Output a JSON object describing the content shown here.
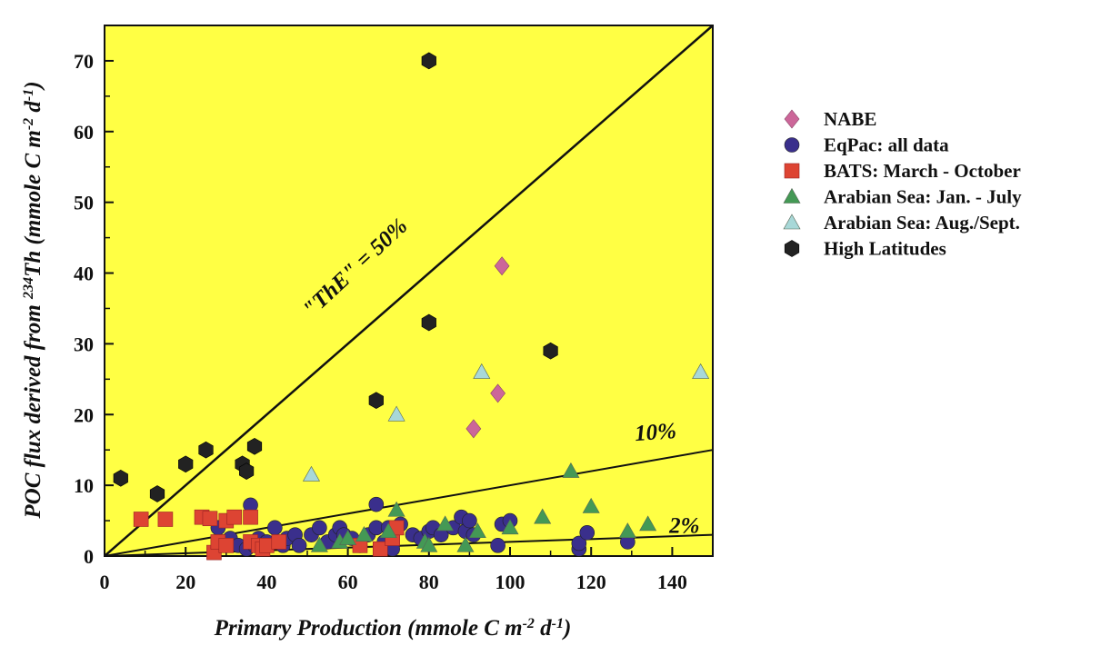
{
  "chart_data": {
    "type": "scatter",
    "title": "",
    "xlabel": "Primary Production (mmole C m-2 d-1)",
    "ylabel": "POC flux derived from 234Th (mmole C m-2 d-1)",
    "xlim": [
      0,
      150
    ],
    "ylim": [
      0,
      75
    ],
    "xticks": [
      0,
      20,
      40,
      60,
      80,
      100,
      120,
      140
    ],
    "yticks": [
      0,
      10,
      20,
      30,
      40,
      50,
      60,
      70
    ],
    "background": "#ffff44",
    "legend_position": "right",
    "reference_lines": [
      {
        "label": "\"ThE\" = 50%",
        "slope": 0.5
      },
      {
        "label": "10%",
        "slope": 0.1
      },
      {
        "label": "2%",
        "slope": 0.02
      }
    ],
    "series": [
      {
        "name": "NABE",
        "marker": "diamond",
        "color": "#cc6699",
        "points": [
          [
            91,
            18
          ],
          [
            97,
            23
          ],
          [
            98,
            41
          ]
        ]
      },
      {
        "name": "EqPac: all data",
        "marker": "circle",
        "color": "#3a2f8c",
        "points": [
          [
            28,
            4
          ],
          [
            31,
            2.5
          ],
          [
            33,
            1.5
          ],
          [
            35,
            1
          ],
          [
            36,
            7.2
          ],
          [
            37,
            1.5
          ],
          [
            38,
            2.5
          ],
          [
            40,
            2
          ],
          [
            42,
            4
          ],
          [
            44,
            1.5
          ],
          [
            45,
            2.5
          ],
          [
            47,
            3
          ],
          [
            48,
            1.5
          ],
          [
            51,
            3
          ],
          [
            53,
            4
          ],
          [
            55,
            2
          ],
          [
            57,
            3
          ],
          [
            58,
            4
          ],
          [
            59,
            3
          ],
          [
            61,
            2.5
          ],
          [
            63,
            1.5
          ],
          [
            65,
            3
          ],
          [
            67,
            4
          ],
          [
            67,
            7.3
          ],
          [
            69,
            2
          ],
          [
            70,
            4
          ],
          [
            71,
            1
          ],
          [
            73,
            4.5
          ],
          [
            76,
            3
          ],
          [
            78,
            2.5
          ],
          [
            80,
            3.5
          ],
          [
            81,
            4
          ],
          [
            83,
            3
          ],
          [
            86,
            4
          ],
          [
            88,
            5.5
          ],
          [
            89,
            3.5
          ],
          [
            90,
            5
          ],
          [
            91,
            3
          ],
          [
            97,
            1.5
          ],
          [
            98,
            4.5
          ],
          [
            100,
            5
          ],
          [
            117,
            1
          ],
          [
            117,
            1.8
          ],
          [
            119,
            3.3
          ],
          [
            129,
            2
          ]
        ]
      },
      {
        "name": "BATS: March - October",
        "marker": "square",
        "color": "#dd4433",
        "points": [
          [
            9,
            5.2
          ],
          [
            15,
            5.2
          ],
          [
            24,
            5.5
          ],
          [
            26,
            5.3
          ],
          [
            27,
            0.5
          ],
          [
            28,
            2
          ],
          [
            30,
            5
          ],
          [
            30,
            1.5
          ],
          [
            32,
            5.5
          ],
          [
            36,
            5.5
          ],
          [
            36,
            2
          ],
          [
            38,
            1.5
          ],
          [
            39,
            1
          ],
          [
            40,
            1.5
          ],
          [
            43,
            2
          ],
          [
            63,
            1.5
          ],
          [
            68,
            1
          ],
          [
            71,
            2.5
          ],
          [
            72,
            4
          ]
        ]
      },
      {
        "name": "Arabian Sea: Jan. - July",
        "marker": "triangle",
        "color": "#449955",
        "points": [
          [
            53,
            1.5
          ],
          [
            58,
            2
          ],
          [
            60,
            2.5
          ],
          [
            64,
            3
          ],
          [
            70,
            3.5
          ],
          [
            72,
            6.5
          ],
          [
            79,
            2
          ],
          [
            80,
            1.5
          ],
          [
            84,
            4.5
          ],
          [
            89,
            1.5
          ],
          [
            92,
            3.5
          ],
          [
            100,
            4
          ],
          [
            108,
            5.5
          ],
          [
            115,
            12
          ],
          [
            120,
            7
          ],
          [
            129,
            3.5
          ],
          [
            134,
            4.5
          ]
        ]
      },
      {
        "name": "Arabian Sea: Aug./Sept.",
        "marker": "triangle",
        "color": "#a8d8d8",
        "points": [
          [
            51,
            11.5
          ],
          [
            72,
            20
          ],
          [
            93,
            26
          ],
          [
            147,
            26
          ]
        ]
      },
      {
        "name": "High Latitudes",
        "marker": "hexagon",
        "color": "#222222",
        "points": [
          [
            4,
            11
          ],
          [
            13,
            8.8
          ],
          [
            20,
            13
          ],
          [
            25,
            15
          ],
          [
            34,
            13
          ],
          [
            35,
            12
          ],
          [
            37,
            15.5
          ],
          [
            67,
            22
          ],
          [
            80,
            33
          ],
          [
            80,
            70
          ],
          [
            110,
            29
          ]
        ]
      }
    ]
  }
}
